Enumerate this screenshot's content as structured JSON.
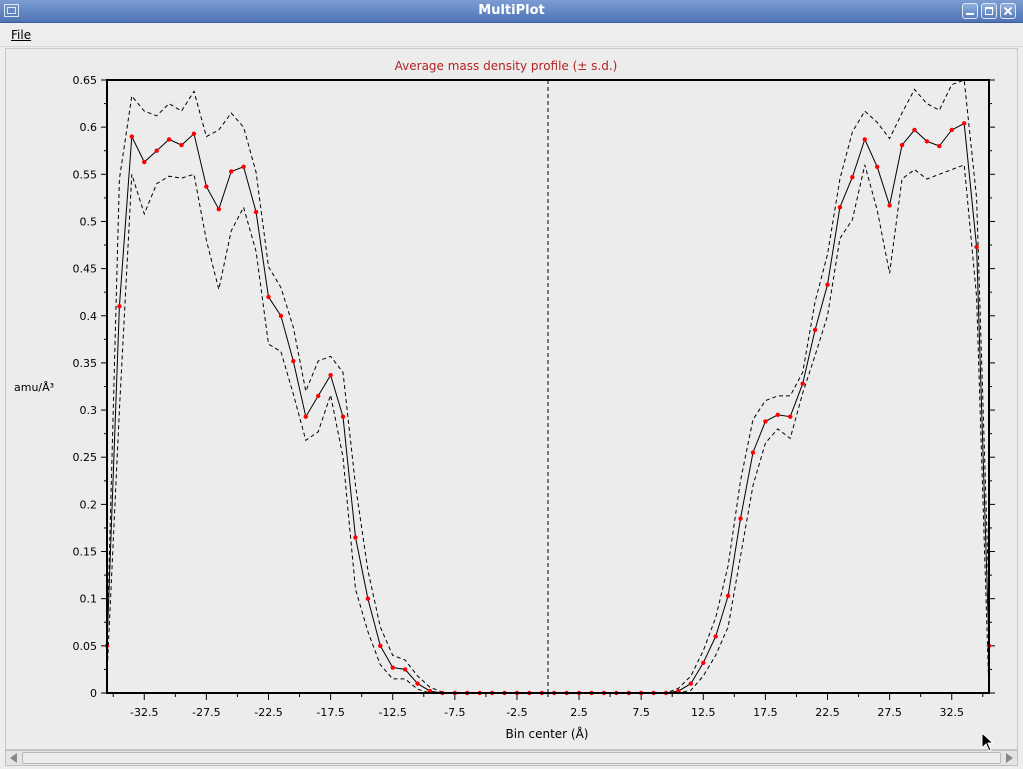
{
  "window": {
    "title": "MultiPlot"
  },
  "menu": {
    "file_label": "File"
  },
  "colors": {
    "mean_line": "#000000",
    "sd_line": "#000000",
    "points": "#ff0000",
    "title": "#b22222"
  },
  "chart_data": {
    "type": "line",
    "title": "Average mass density profile (± s.d.)",
    "xlabel": "Bin center (Å)",
    "ylabel": "amu/Å³",
    "xlim": [
      -35.5,
      35.5
    ],
    "ylim": [
      0,
      0.65
    ],
    "xticks": [
      -32.5,
      -27.5,
      -22.5,
      -17.5,
      -12.5,
      -7.5,
      -2.5,
      2.5,
      7.5,
      12.5,
      17.5,
      22.5,
      27.5,
      32.5
    ],
    "yticks": [
      0,
      0.05,
      0.1,
      0.15,
      0.2,
      0.25,
      0.3,
      0.35,
      0.4,
      0.45,
      0.5,
      0.55,
      0.6,
      0.65
    ],
    "vline_x": 0,
    "x": [
      -35.5,
      -34.5,
      -33.5,
      -32.5,
      -31.5,
      -30.5,
      -29.5,
      -28.5,
      -27.5,
      -26.5,
      -25.5,
      -24.5,
      -23.5,
      -22.5,
      -21.5,
      -20.5,
      -19.5,
      -18.5,
      -17.5,
      -16.5,
      -15.5,
      -14.5,
      -13.5,
      -12.5,
      -11.5,
      -10.5,
      -9.5,
      -8.5,
      -7.5,
      -6.5,
      -5.5,
      -4.5,
      -3.5,
      -2.5,
      -1.5,
      -0.5,
      0.5,
      1.5,
      2.5,
      3.5,
      4.5,
      5.5,
      6.5,
      7.5,
      8.5,
      9.5,
      10.5,
      11.5,
      12.5,
      13.5,
      14.5,
      15.5,
      16.5,
      17.5,
      18.5,
      19.5,
      20.5,
      21.5,
      22.5,
      23.5,
      24.5,
      25.5,
      26.5,
      27.5,
      28.5,
      29.5,
      30.5,
      31.5,
      32.5,
      33.5,
      34.5,
      35.5
    ],
    "series": [
      {
        "style": "solid-with-points",
        "values": [
          0.05,
          0.41,
          0.59,
          0.563,
          0.575,
          0.587,
          0.581,
          0.593,
          0.537,
          0.513,
          0.553,
          0.558,
          0.51,
          0.42,
          0.4,
          0.352,
          0.293,
          0.315,
          0.337,
          0.293,
          0.165,
          0.1,
          0.05,
          0.027,
          0.025,
          0.01,
          0.002,
          0,
          0,
          0,
          0,
          0,
          0,
          0,
          0,
          0,
          0,
          0,
          0,
          0,
          0,
          0,
          0,
          0,
          0,
          0,
          0.002,
          0.01,
          0.032,
          0.06,
          0.103,
          0.185,
          0.255,
          0.288,
          0.295,
          0.293,
          0.328,
          0.385,
          0.433,
          0.515,
          0.547,
          0.587,
          0.558,
          0.517,
          0.581,
          0.597,
          0.585,
          0.58,
          0.597,
          0.604,
          0.473,
          0.05
        ]
      },
      {
        "style": "dashed",
        "values": [
          0.05,
          0.545,
          0.633,
          0.617,
          0.612,
          0.625,
          0.617,
          0.638,
          0.59,
          0.597,
          0.615,
          0.6,
          0.552,
          0.452,
          0.43,
          0.388,
          0.32,
          0.352,
          0.357,
          0.34,
          0.22,
          0.13,
          0.07,
          0.04,
          0.035,
          0.018,
          0.006,
          0.001,
          0,
          0,
          0,
          0,
          0,
          0,
          0,
          0,
          0,
          0,
          0,
          0,
          0,
          0,
          0,
          0,
          0,
          0,
          0.005,
          0.018,
          0.045,
          0.08,
          0.135,
          0.225,
          0.29,
          0.31,
          0.315,
          0.315,
          0.34,
          0.415,
          0.465,
          0.545,
          0.595,
          0.617,
          0.605,
          0.588,
          0.615,
          0.64,
          0.625,
          0.618,
          0.645,
          0.65,
          0.525,
          0.1
        ]
      },
      {
        "style": "dashed",
        "values": [
          0.02,
          0.3,
          0.55,
          0.508,
          0.54,
          0.548,
          0.546,
          0.55,
          0.48,
          0.428,
          0.49,
          0.515,
          0.468,
          0.37,
          0.362,
          0.317,
          0.268,
          0.277,
          0.316,
          0.25,
          0.11,
          0.065,
          0.03,
          0.015,
          0.015,
          0.004,
          0,
          0,
          0,
          0,
          0,
          0,
          0,
          0,
          0,
          0,
          0,
          0,
          0,
          0,
          0,
          0,
          0,
          0,
          0,
          0,
          0,
          0.003,
          0.018,
          0.04,
          0.07,
          0.145,
          0.22,
          0.265,
          0.28,
          0.27,
          0.318,
          0.358,
          0.4,
          0.482,
          0.502,
          0.56,
          0.512,
          0.445,
          0.545,
          0.555,
          0.545,
          0.55,
          0.555,
          0.56,
          0.42,
          0
        ]
      }
    ]
  }
}
